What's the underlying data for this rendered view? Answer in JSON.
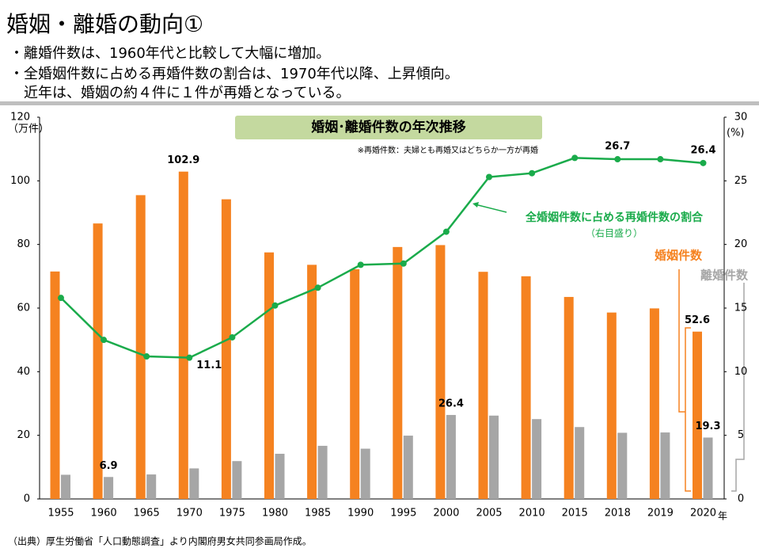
{
  "header": {
    "title": "婚姻・離婚の動向①",
    "bullets": [
      "・離婚件数は、1960年代と比較して大幅に増加。",
      "・全婚姻件数に占める再婚件数の割合は、1970年代以降、上昇傾向。",
      "近年は、婚姻の約４件に１件が再婚となっている。"
    ]
  },
  "chart_data": {
    "type": "bar",
    "title": "婚姻･離婚件数の年次推移",
    "note": "※再婚件数：夫婦とも再婚又はどちらか一方が再婚",
    "ylabel": "（万件）",
    "y2label": "(%)",
    "xlabel": "年",
    "y2_annotation": "（右目盛り）",
    "categories": [
      "1955",
      "1960",
      "1965",
      "1970",
      "1975",
      "1980",
      "1985",
      "1990",
      "1995",
      "2000",
      "2005",
      "2010",
      "2015",
      "2018",
      "2019",
      "2020"
    ],
    "series": [
      {
        "name": "婚姻件数",
        "color": "#f58220",
        "type": "bar",
        "values": [
          71.5,
          86.6,
          95.5,
          102.9,
          94.2,
          77.5,
          73.6,
          72.2,
          79.2,
          79.8,
          71.4,
          70.0,
          63.5,
          58.6,
          59.9,
          52.6
        ],
        "value_labels": [
          null,
          null,
          null,
          "102.9",
          null,
          null,
          null,
          null,
          null,
          null,
          null,
          null,
          null,
          null,
          null,
          "52.6"
        ]
      },
      {
        "name": "離婚件数",
        "color": "#a6a6a6",
        "type": "bar",
        "values": [
          7.6,
          6.9,
          7.7,
          9.6,
          11.9,
          14.2,
          16.7,
          15.8,
          19.9,
          26.4,
          26.2,
          25.1,
          22.6,
          20.8,
          20.9,
          19.3
        ],
        "value_labels": [
          null,
          "6.9",
          null,
          null,
          null,
          null,
          null,
          null,
          null,
          "26.4",
          null,
          null,
          null,
          null,
          null,
          "19.3"
        ]
      },
      {
        "name": "全婚姻件数に占める再婚件数の割合",
        "color": "#1aab4b",
        "type": "line",
        "axis": "y2",
        "values": [
          15.8,
          12.5,
          11.2,
          11.1,
          12.7,
          15.2,
          16.6,
          18.4,
          18.5,
          21.0,
          25.3,
          25.6,
          26.8,
          26.7,
          26.7,
          26.4
        ],
        "value_labels": [
          null,
          null,
          null,
          "11.1",
          null,
          null,
          null,
          null,
          null,
          null,
          null,
          null,
          null,
          "26.7",
          null,
          "26.4"
        ]
      }
    ],
    "ylim": [
      0,
      120
    ],
    "yticks": [
      0,
      20,
      40,
      60,
      80,
      100,
      120
    ],
    "y2lim": [
      0,
      30
    ],
    "y2ticks": [
      0,
      5,
      10,
      15,
      20,
      25,
      30
    ]
  },
  "source": "（出典）厚生労働省「人口動態調査」より内閣府男女共同参画局作成。"
}
